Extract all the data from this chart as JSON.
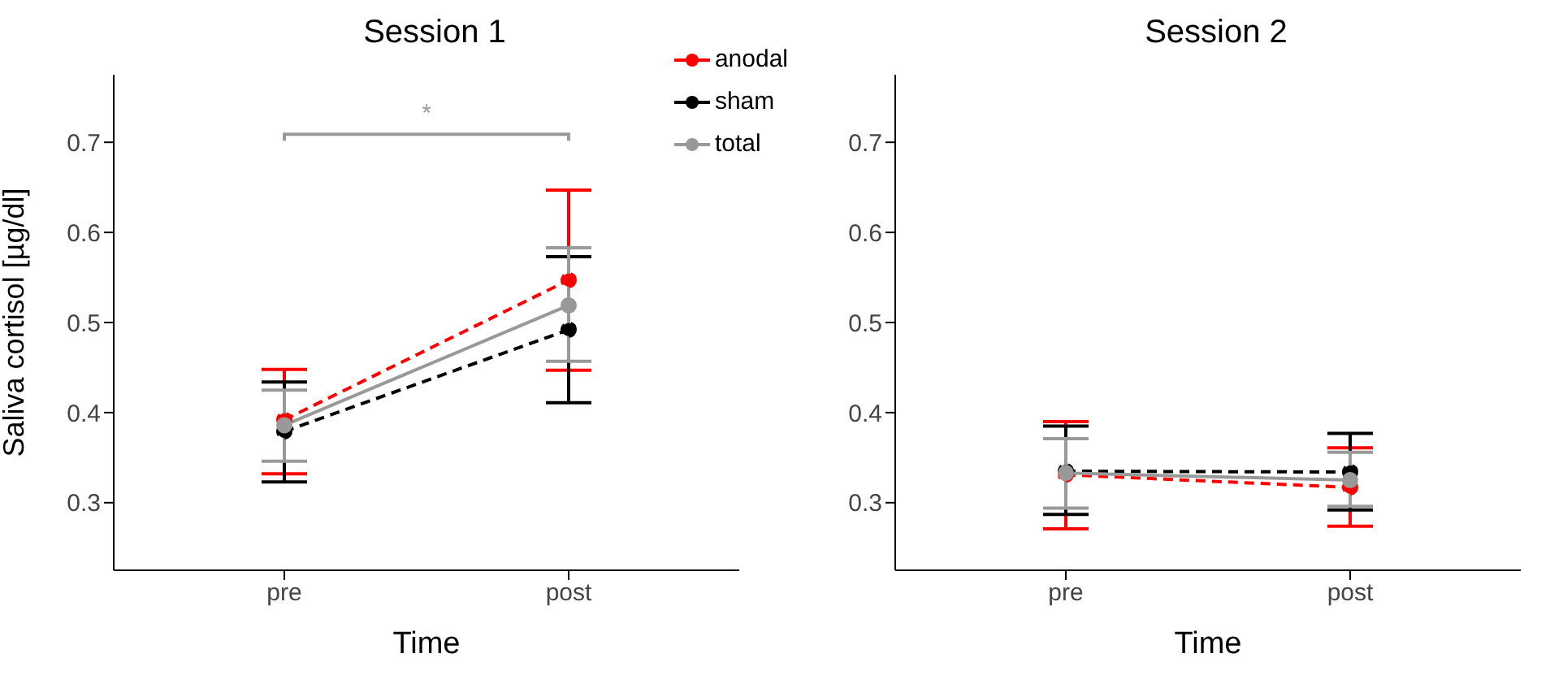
{
  "chart_data": [
    {
      "type": "line",
      "title": "Session 1",
      "xlabel": "Time",
      "ylabel": "Saliva cortisol [µg/dl]",
      "categories": [
        "pre",
        "post"
      ],
      "ylim": [
        0.225,
        0.775
      ],
      "yticks": [
        0.3,
        0.4,
        0.5,
        0.6,
        0.7
      ],
      "grid": false,
      "legend": "top right",
      "marker": "circle",
      "annotations": [
        "*"
      ],
      "series": [
        {
          "name": "anodal",
          "color": "#ff0000",
          "line_style": "dashed",
          "values": [
            0.392,
            0.547
          ],
          "errors": [
            [
              0.332,
              0.448
            ],
            [
              0.447,
              0.647
            ]
          ]
        },
        {
          "name": "sham",
          "color": "#000000",
          "line_style": "dashed",
          "values": [
            0.379,
            0.492
          ],
          "errors": [
            [
              0.323,
              0.434
            ],
            [
              0.411,
              0.573
            ]
          ]
        },
        {
          "name": "total",
          "color": "#999999",
          "line_style": "solid",
          "values": [
            0.386,
            0.519
          ],
          "errors": [
            [
              0.346,
              0.425
            ],
            [
              0.457,
              0.583
            ]
          ]
        }
      ]
    },
    {
      "type": "line",
      "title": "Session 2",
      "xlabel": "Time",
      "categories": [
        "pre",
        "post"
      ],
      "ylim": [
        0.225,
        0.775
      ],
      "yticks": [
        0.3,
        0.4,
        0.5,
        0.6,
        0.7
      ],
      "grid": false,
      "marker": "circle",
      "series": [
        {
          "color": "#ff0000",
          "line_style": "dashed",
          "values": [
            0.331,
            0.317
          ],
          "errors": [
            [
              0.271,
              0.39
            ],
            [
              0.274,
              0.361
            ]
          ]
        },
        {
          "color": "#000000",
          "line_style": "dashed",
          "values": [
            0.335,
            0.334
          ],
          "errors": [
            [
              0.287,
              0.385
            ],
            [
              0.292,
              0.377
            ]
          ]
        },
        {
          "color": "#999999",
          "line_style": "solid",
          "values": [
            0.333,
            0.325
          ],
          "errors": [
            [
              0.294,
              0.371
            ],
            [
              0.296,
              0.356
            ]
          ]
        }
      ]
    }
  ]
}
